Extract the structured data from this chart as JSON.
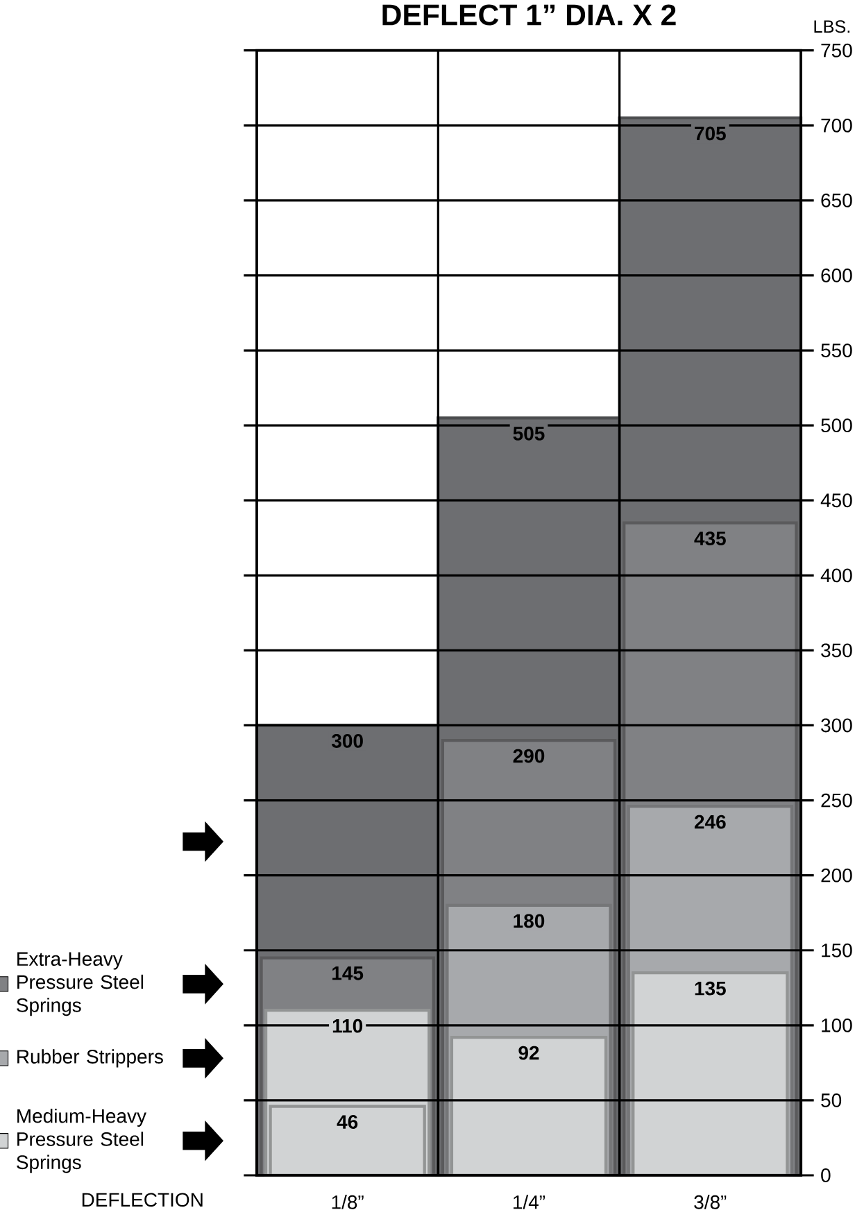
{
  "chart_data": {
    "type": "bar",
    "title": "DEFLECT 1” DIA. X 2",
    "xlabel": "DEFLECTION",
    "ylabel": "LBS.",
    "categories": [
      "1/8”",
      "1/4”",
      "3/8”"
    ],
    "series": [
      {
        "name": "Medium-Heavy Pressure Steel Springs",
        "color": "#d1d3d4",
        "values": [
          46,
          92,
          135
        ]
      },
      {
        "name": "Rubber Strippers",
        "color": "#a7a9ac",
        "colors": [
          "#d1d3d4",
          "#a7a9ac",
          "#a7a9ac"
        ],
        "values": [
          110,
          180,
          246
        ]
      },
      {
        "name": "Extra-Heavy Pressure Steel Springs",
        "color": "#808184",
        "values": [
          145,
          290,
          435
        ]
      },
      {
        "color": "#6d6e71",
        "values": [
          300,
          505,
          705
        ]
      }
    ],
    "ylim": [
      0,
      750
    ],
    "yticks": [
      0,
      50,
      100,
      150,
      200,
      250,
      300,
      350,
      400,
      450,
      500,
      550,
      600,
      650,
      700,
      750
    ],
    "grid": "y",
    "data_labels": true,
    "legend": "left"
  }
}
